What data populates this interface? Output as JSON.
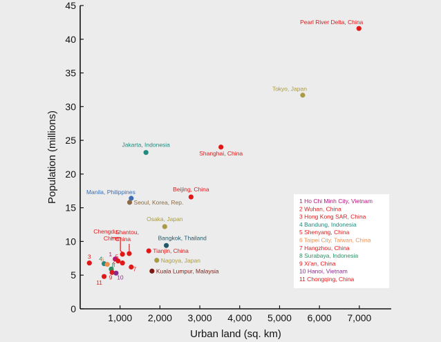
{
  "colors": {
    "background": "#ececec",
    "plot_background": "#ececec",
    "axis": "#111111",
    "red": "#e01818",
    "olive": "#a99b43",
    "teal": "#1f8a7d",
    "blue": "#3a6bb5",
    "brown": "#8a6b45",
    "darkteal": "#1f5868",
    "darkred": "#7a1a10",
    "magenta": "#b5177a",
    "green": "#2c8c62",
    "orange": "#f09050",
    "purple": "#8a2b8a",
    "legend_bg": "#ffffff"
  },
  "chart_data": {
    "type": "scatter",
    "xlabel": "Urban land (sq. km)",
    "ylabel": "Population (millions)",
    "xlim": [
      0,
      7800
    ],
    "ylim": [
      0,
      45
    ],
    "x_ticks": [
      {
        "value": 1000,
        "label": "1,000"
      },
      {
        "value": 2000,
        "label": "2,000"
      },
      {
        "value": 3000,
        "label": "3,000"
      },
      {
        "value": 4000,
        "label": "4,000"
      },
      {
        "value": 5000,
        "label": "5,000"
      },
      {
        "value": 6000,
        "label": "6,000"
      },
      {
        "value": 7000,
        "label": "7,000"
      }
    ],
    "y_ticks": [
      {
        "value": 0,
        "label": "0"
      },
      {
        "value": 5,
        "label": "5"
      },
      {
        "value": 10,
        "label": "10"
      },
      {
        "value": 15,
        "label": "15"
      },
      {
        "value": 20,
        "label": "20"
      },
      {
        "value": 25,
        "label": "25"
      },
      {
        "value": 30,
        "label": "30"
      },
      {
        "value": 35,
        "label": "35"
      },
      {
        "value": 40,
        "label": "40"
      },
      {
        "value": 45,
        "label": "45"
      }
    ],
    "grid": false,
    "legend_position": "right",
    "points": [
      {
        "label": "Pearl River Delta, China",
        "x": 6990,
        "y": 41.6,
        "color": "red",
        "anchor": "label-above-left"
      },
      {
        "label": "Tokyo, Japan",
        "x": 5580,
        "y": 31.7,
        "color": "olive",
        "anchor": "label-above-left"
      },
      {
        "label": "Shanghai, China",
        "x": 3530,
        "y": 24.0,
        "color": "red",
        "anchor": "label-below"
      },
      {
        "label": "Jakarta, Indonesia",
        "x": 1650,
        "y": 23.2,
        "color": "teal",
        "anchor": "label-above"
      },
      {
        "label": "Beijing, China",
        "x": 2780,
        "y": 16.6,
        "color": "red",
        "anchor": "label-above"
      },
      {
        "label": "Manila, Philippines",
        "x": 1280,
        "y": 16.4,
        "color": "blue",
        "anchor": "label-above-left"
      },
      {
        "label": "Seoul, Korea, Rep.",
        "x": 1240,
        "y": 15.8,
        "color": "brown",
        "anchor": "label-right"
      },
      {
        "label": "Osaka, Japan",
        "x": 2120,
        "y": 12.2,
        "color": "olive",
        "anchor": "label-above"
      },
      {
        "label": "Bangkok, Thailand",
        "x": 2160,
        "y": 9.4,
        "color": "darkteal",
        "anchor": "label-above-right"
      },
      {
        "label": "Tianjin, China",
        "x": 1720,
        "y": 8.6,
        "color": "red",
        "anchor": "label-right"
      },
      {
        "label": "Nagoya, Japan",
        "x": 1920,
        "y": 7.2,
        "color": "olive",
        "anchor": "label-right"
      },
      {
        "label": "Kuala Lumpur, Malaysia",
        "x": 1800,
        "y": 5.6,
        "color": "darkred",
        "anchor": "label-right"
      },
      {
        "label": "Chengdu, China",
        "x": 1060,
        "y": 8.1,
        "color": "red",
        "anchor": "label-callout-left"
      },
      {
        "label": "Shantou, China",
        "x": 1230,
        "y": 8.2,
        "color": "red",
        "anchor": "label-callout-above"
      },
      {
        "number": "1",
        "x": 880,
        "y": 7.4,
        "color": "magenta"
      },
      {
        "number": "2",
        "x": 950,
        "y": 7.1,
        "color": "red"
      },
      {
        "number": "3",
        "x": 230,
        "y": 6.8,
        "color": "red"
      },
      {
        "number": "4",
        "x": 600,
        "y": 6.7,
        "color": "teal"
      },
      {
        "number": "5",
        "x": 1060,
        "y": 6.8,
        "color": "red"
      },
      {
        "number": "6",
        "x": 680,
        "y": 6.6,
        "color": "orange"
      },
      {
        "number": "7",
        "x": 1280,
        "y": 6.2,
        "color": "red"
      },
      {
        "number": "8",
        "x": 780,
        "y": 5.9,
        "color": "green"
      },
      {
        "number": "9",
        "x": 800,
        "y": 5.4,
        "color": "red"
      },
      {
        "number": "10",
        "x": 900,
        "y": 5.3,
        "color": "purple"
      },
      {
        "number": "11",
        "x": 600,
        "y": 4.8,
        "color": "red"
      }
    ],
    "legend": [
      {
        "text": "1 Ho Chi Minh City, Vietnam",
        "color": "magenta"
      },
      {
        "text": "2 Wuhan, China",
        "color": "red"
      },
      {
        "text": "3 Hong Kong SAR, China",
        "color": "red"
      },
      {
        "text": "4 Bandung, Indonesia",
        "color": "teal"
      },
      {
        "text": "5 Shenyang, China",
        "color": "red"
      },
      {
        "text": "6 Taipei City, Taiwan, China",
        "color": "orange"
      },
      {
        "text": "7 Hangzhou, China",
        "color": "red"
      },
      {
        "text": "8 Surabaya, Indonesia",
        "color": "green"
      },
      {
        "text": "9 Xi'an, China",
        "color": "red"
      },
      {
        "text": "10 Hanoi, Vietnam",
        "color": "purple"
      },
      {
        "text": "11 Chongqing, China",
        "color": "red"
      }
    ]
  }
}
